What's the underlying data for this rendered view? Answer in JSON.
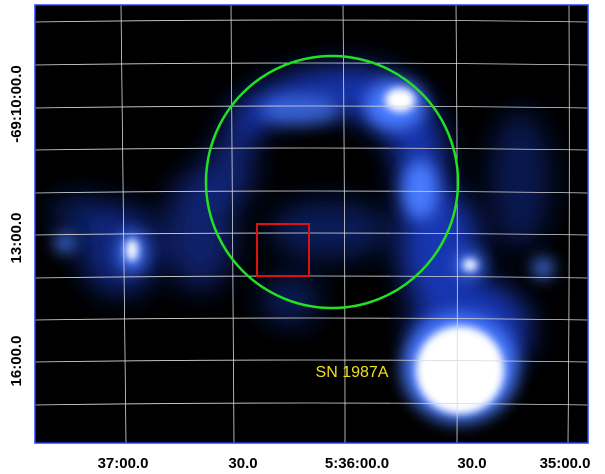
{
  "image": {
    "x_labels": [
      "37:00.0",
      "30.0",
      "5:36:00.0",
      "30.0",
      "35:00.0"
    ],
    "y_labels": [
      "-69:10:00.0",
      "13:00.0",
      "16:00.0"
    ],
    "annotation": "SN 1987A"
  }
}
